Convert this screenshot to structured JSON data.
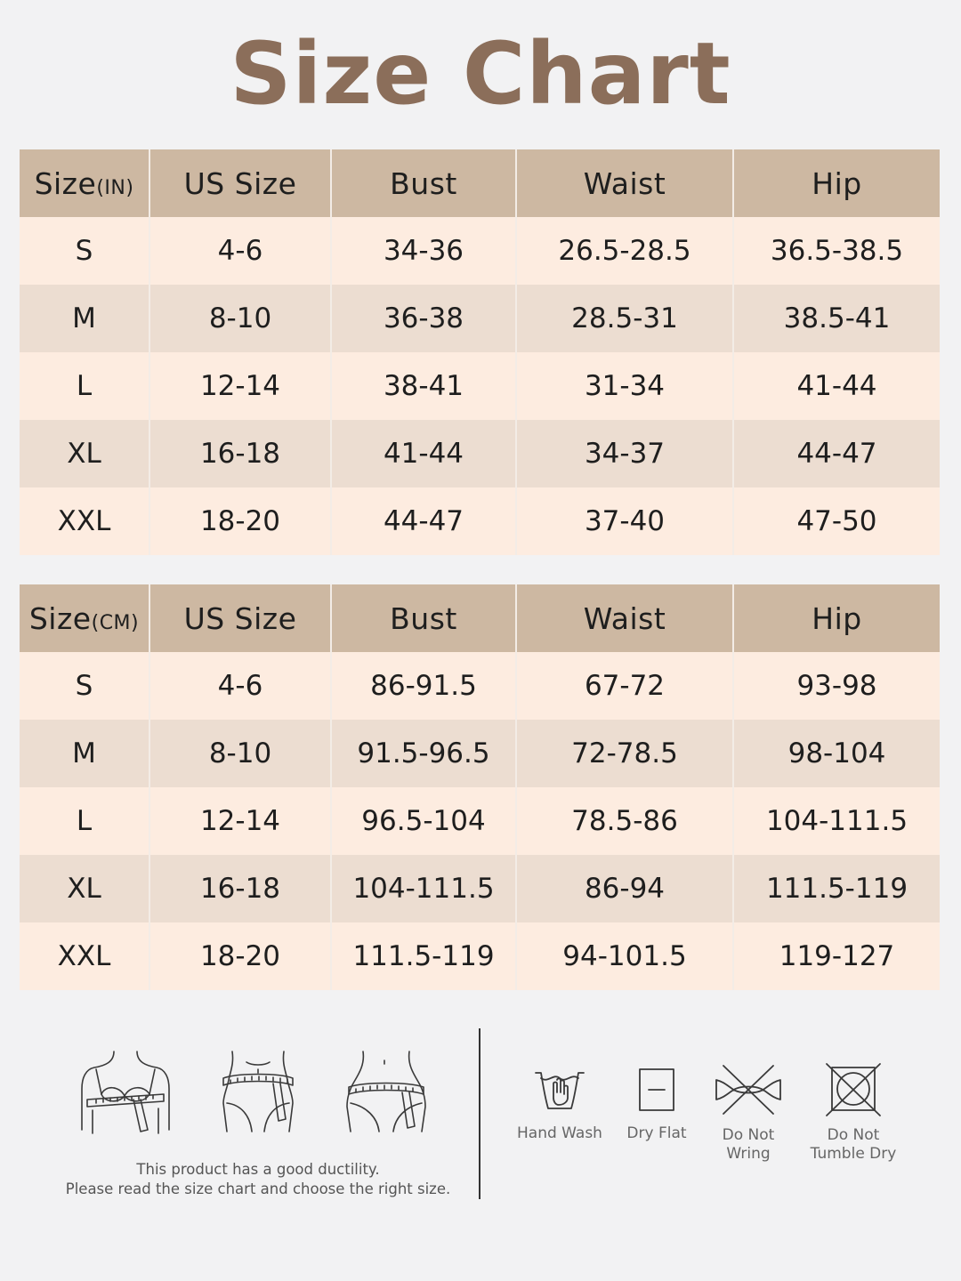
{
  "title": "Size Chart",
  "colors": {
    "title": "#8b6e5a",
    "header_bg": "#cdb8a2",
    "row_light": "#fdece0",
    "row_dark": "#ecddd1",
    "icon_stroke": "#3a3a3a"
  },
  "tables": [
    {
      "id": "inches",
      "headers": [
        {
          "label": "Size",
          "unit": "(IN)"
        },
        {
          "label": "US Size"
        },
        {
          "label": "Bust"
        },
        {
          "label": "Waist"
        },
        {
          "label": "Hip"
        }
      ],
      "rows": [
        [
          "S",
          "4-6",
          "34-36",
          "26.5-28.5",
          "36.5-38.5"
        ],
        [
          "M",
          "8-10",
          "36-38",
          "28.5-31",
          "38.5-41"
        ],
        [
          "L",
          "12-14",
          "38-41",
          "31-34",
          "41-44"
        ],
        [
          "XL",
          "16-18",
          "41-44",
          "34-37",
          "44-47"
        ],
        [
          "XXL",
          "18-20",
          "44-47",
          "37-40",
          "47-50"
        ]
      ]
    },
    {
      "id": "centimeters",
      "headers": [
        {
          "label": "Size",
          "unit": "(CM)"
        },
        {
          "label": "US Size"
        },
        {
          "label": "Bust"
        },
        {
          "label": "Waist"
        },
        {
          "label": "Hip"
        }
      ],
      "rows": [
        [
          "S",
          "4-6",
          "86-91.5",
          "67-72",
          "93-98"
        ],
        [
          "M",
          "8-10",
          "91.5-96.5",
          "72-78.5",
          "98-104"
        ],
        [
          "L",
          "12-14",
          "96.5-104",
          "78.5-86",
          "104-111.5"
        ],
        [
          "XL",
          "16-18",
          "104-111.5",
          "86-94",
          "111.5-119"
        ],
        [
          "XXL",
          "18-20",
          "111.5-119",
          "94-101.5",
          "119-127"
        ]
      ]
    }
  ],
  "measure_icons": [
    "bust-measure-icon",
    "waist-measure-icon",
    "hip-measure-icon"
  ],
  "note": {
    "line1": "This product has a good ductility.",
    "line2": "Please read the size chart and choose the right size."
  },
  "care": [
    {
      "icon": "hand-wash-icon",
      "label": "Hand Wash"
    },
    {
      "icon": "dry-flat-icon",
      "label": "Dry Flat"
    },
    {
      "icon": "do-not-wring-icon",
      "label": "Do Not\nWring"
    },
    {
      "icon": "do-not-tumble-dry-icon",
      "label": "Do Not\nTumble Dry"
    }
  ]
}
